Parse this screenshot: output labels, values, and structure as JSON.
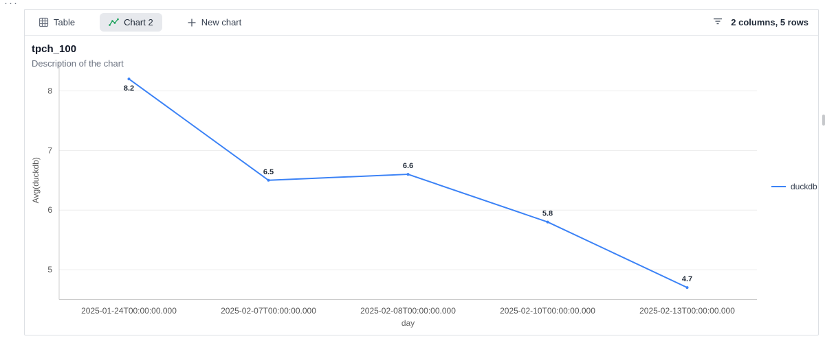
{
  "page": {
    "overflow_dots": "···"
  },
  "toolbar": {
    "tabs": [
      {
        "label": "Table"
      },
      {
        "label": "Chart 2"
      },
      {
        "label": "New chart"
      }
    ],
    "summary": "2 columns, 5 rows"
  },
  "chart_header": {
    "title": "tpch_100",
    "subtitle": "Description of the chart"
  },
  "chart_data": {
    "type": "line",
    "title": "tpch_100",
    "subtitle": "Description of the chart",
    "categories": [
      "2025-01-24T00:00:00.000",
      "2025-02-07T00:00:00.000",
      "2025-02-08T00:00:00.000",
      "2025-02-10T00:00:00.000",
      "2025-02-13T00:00:00.000"
    ],
    "series": [
      {
        "name": "duckdb",
        "color": "#3b82f6",
        "values": [
          8.2,
          6.5,
          6.6,
          5.8,
          4.7
        ]
      }
    ],
    "xlabel": "day",
    "ylabel": "Avg(duckdb)",
    "yticks": [
      5,
      6,
      7,
      8
    ],
    "ylim": [
      4.5,
      8.5
    ],
    "grid": true,
    "data_labels": true,
    "legend_position": "right",
    "colors": {
      "series_blue": "#3b82f6",
      "gridline": "#ececec",
      "axis_line": "#cccccc",
      "chart_tab_icon_green": "#18a058"
    }
  }
}
